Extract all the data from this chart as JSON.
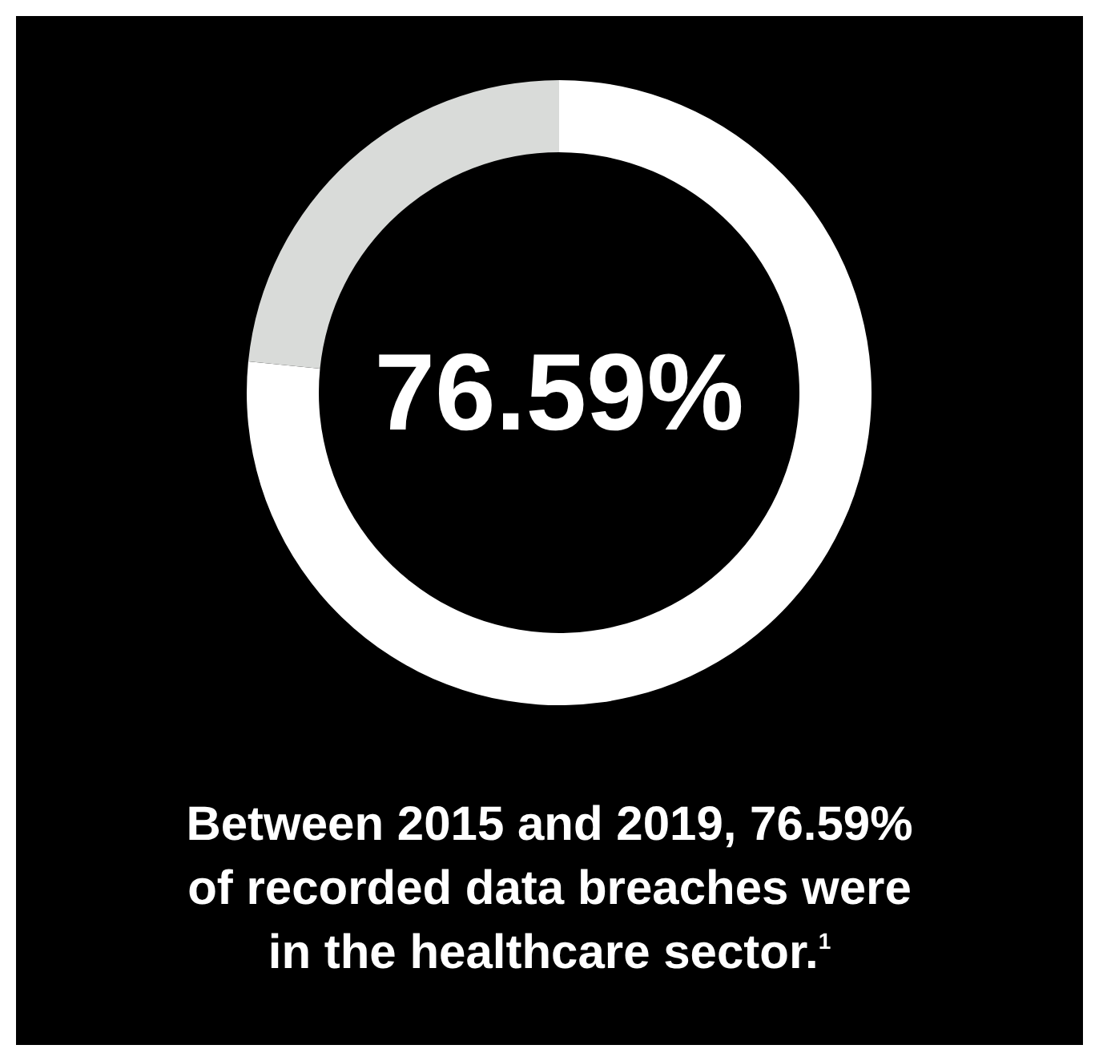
{
  "chart_data": {
    "type": "donut",
    "title": "Between 2015 and 2019, 76.59% of recorded data breaches were in the healthcare sector.$^{1}$",
    "categories": [
      null,
      null
    ],
    "values": [
      76.59,
      23.41
    ],
    "colors": [
      "#ffffff",
      "#d9dbd9"
    ],
    "value_labels": [
      "76.59%",
      null
    ]
  }
}
